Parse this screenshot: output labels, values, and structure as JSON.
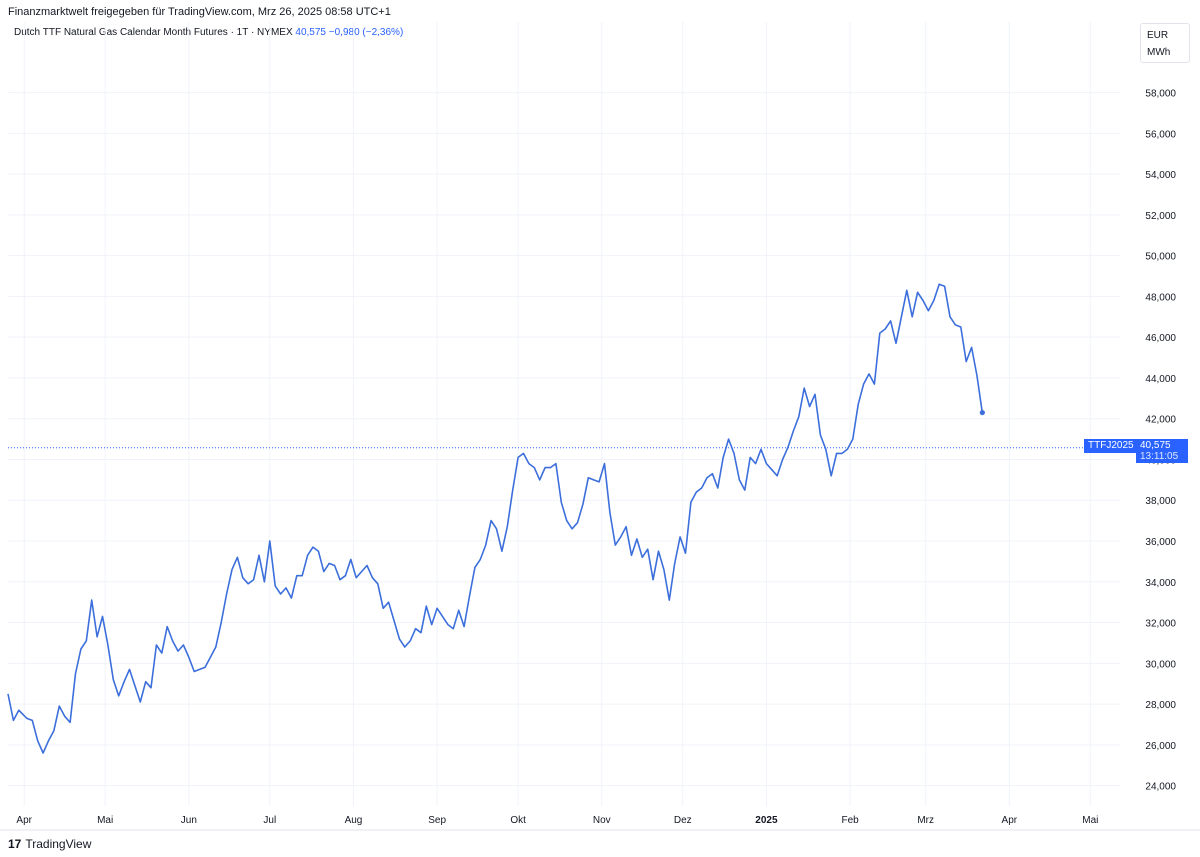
{
  "header": {
    "publisher_line": "Finanzmarktwelt freigegeben für TradingView.com, Mrz 26, 2025 08:58 UTC+1",
    "instrument": "Dutch TTF Natural Gas Calendar Month Futures · 1T · NYMEX",
    "last_price": "40,575",
    "change": "−0,980 (−2,36%)"
  },
  "units": {
    "currency": "EUR",
    "measure": "MWh"
  },
  "price_label": {
    "ticker": "TTFJ2025",
    "price": "40,575",
    "countdown": "13:11:05"
  },
  "footer": {
    "logo_mark": "17",
    "logo_text": "TradingView"
  },
  "colors": {
    "line": "#3c6fdb",
    "accent": "#2962ff",
    "grid": "#f0f3fa"
  },
  "chart_data": {
    "type": "line",
    "title": "Dutch TTF Natural Gas Calendar Month Futures",
    "ylabel": "EUR / MWh",
    "ylim": [
      23000,
      59500
    ],
    "y_ticks": [
      24000,
      26000,
      28000,
      30000,
      32000,
      34000,
      36000,
      38000,
      40000,
      42000,
      44000,
      46000,
      48000,
      50000,
      52000,
      54000,
      56000,
      58000
    ],
    "y_tick_labels": [
      "24,000",
      "26,000",
      "28,000",
      "30,000",
      "32,000",
      "34,000",
      "36,000",
      "38,000",
      "40,000",
      "42,000",
      "44,000",
      "46,000",
      "48,000",
      "50,000",
      "52,000",
      "54,000",
      "56,000",
      "58,000"
    ],
    "xlim": [
      "2024-03-26",
      "2025-05-12"
    ],
    "x_ticks": [
      {
        "label": "Apr",
        "date": "2024-04-01",
        "bold": false
      },
      {
        "label": "Mai",
        "date": "2024-05-01",
        "bold": false
      },
      {
        "label": "Jun",
        "date": "2024-06-01",
        "bold": false
      },
      {
        "label": "Jul",
        "date": "2024-07-01",
        "bold": false
      },
      {
        "label": "Aug",
        "date": "2024-08-01",
        "bold": false
      },
      {
        "label": "Sep",
        "date": "2024-09-01",
        "bold": false
      },
      {
        "label": "Okt",
        "date": "2024-10-01",
        "bold": false
      },
      {
        "label": "Nov",
        "date": "2024-11-01",
        "bold": false
      },
      {
        "label": "Dez",
        "date": "2024-12-01",
        "bold": false
      },
      {
        "label": "2025",
        "date": "2025-01-01",
        "bold": true
      },
      {
        "label": "Feb",
        "date": "2025-02-01",
        "bold": false
      },
      {
        "label": "Mrz",
        "date": "2025-03-01",
        "bold": false
      },
      {
        "label": "Apr",
        "date": "2025-04-01",
        "bold": false
      },
      {
        "label": "Mai",
        "date": "2025-05-01",
        "bold": false
      }
    ],
    "last_value": 40575,
    "series": [
      {
        "points": [
          [
            "2024-03-26",
            28500
          ],
          [
            "2024-03-28",
            27200
          ],
          [
            "2024-03-30",
            27700
          ],
          [
            "2024-04-02",
            27300
          ],
          [
            "2024-04-04",
            27200
          ],
          [
            "2024-04-06",
            26200
          ],
          [
            "2024-04-08",
            25600
          ],
          [
            "2024-04-10",
            26200
          ],
          [
            "2024-04-12",
            26700
          ],
          [
            "2024-04-14",
            27900
          ],
          [
            "2024-04-16",
            27400
          ],
          [
            "2024-04-18",
            27100
          ],
          [
            "2024-04-20",
            29500
          ],
          [
            "2024-04-22",
            30700
          ],
          [
            "2024-04-24",
            31100
          ],
          [
            "2024-04-26",
            33100
          ],
          [
            "2024-04-28",
            31300
          ],
          [
            "2024-04-30",
            32300
          ],
          [
            "2024-05-02",
            30900
          ],
          [
            "2024-05-04",
            29200
          ],
          [
            "2024-05-06",
            28400
          ],
          [
            "2024-05-08",
            29100
          ],
          [
            "2024-05-10",
            29700
          ],
          [
            "2024-05-12",
            28900
          ],
          [
            "2024-05-14",
            28100
          ],
          [
            "2024-05-16",
            29100
          ],
          [
            "2024-05-18",
            28800
          ],
          [
            "2024-05-20",
            30900
          ],
          [
            "2024-05-22",
            30500
          ],
          [
            "2024-05-24",
            31800
          ],
          [
            "2024-05-26",
            31100
          ],
          [
            "2024-05-28",
            30600
          ],
          [
            "2024-05-30",
            30900
          ],
          [
            "2024-06-01",
            30300
          ],
          [
            "2024-06-03",
            29600
          ],
          [
            "2024-06-05",
            29700
          ],
          [
            "2024-06-07",
            29800
          ],
          [
            "2024-06-09",
            30300
          ],
          [
            "2024-06-11",
            30800
          ],
          [
            "2024-06-13",
            32000
          ],
          [
            "2024-06-15",
            33400
          ],
          [
            "2024-06-17",
            34600
          ],
          [
            "2024-06-19",
            35200
          ],
          [
            "2024-06-21",
            34200
          ],
          [
            "2024-06-23",
            33900
          ],
          [
            "2024-06-25",
            34100
          ],
          [
            "2024-06-27",
            35300
          ],
          [
            "2024-06-29",
            34000
          ],
          [
            "2024-07-01",
            36000
          ],
          [
            "2024-07-03",
            33800
          ],
          [
            "2024-07-05",
            33400
          ],
          [
            "2024-07-07",
            33700
          ],
          [
            "2024-07-09",
            33200
          ],
          [
            "2024-07-11",
            34300
          ],
          [
            "2024-07-13",
            34300
          ],
          [
            "2024-07-15",
            35300
          ],
          [
            "2024-07-17",
            35700
          ],
          [
            "2024-07-19",
            35500
          ],
          [
            "2024-07-21",
            34500
          ],
          [
            "2024-07-23",
            34900
          ],
          [
            "2024-07-25",
            34800
          ],
          [
            "2024-07-27",
            34100
          ],
          [
            "2024-07-29",
            34300
          ],
          [
            "2024-07-31",
            35100
          ],
          [
            "2024-08-02",
            34200
          ],
          [
            "2024-08-04",
            34500
          ],
          [
            "2024-08-06",
            34800
          ],
          [
            "2024-08-08",
            34200
          ],
          [
            "2024-08-10",
            33900
          ],
          [
            "2024-08-12",
            32700
          ],
          [
            "2024-08-14",
            33000
          ],
          [
            "2024-08-16",
            32100
          ],
          [
            "2024-08-18",
            31200
          ],
          [
            "2024-08-20",
            30800
          ],
          [
            "2024-08-22",
            31100
          ],
          [
            "2024-08-24",
            31700
          ],
          [
            "2024-08-26",
            31500
          ],
          [
            "2024-08-28",
            32800
          ],
          [
            "2024-08-30",
            31900
          ],
          [
            "2024-09-01",
            32700
          ],
          [
            "2024-09-03",
            32300
          ],
          [
            "2024-09-05",
            31900
          ],
          [
            "2024-09-07",
            31700
          ],
          [
            "2024-09-09",
            32600
          ],
          [
            "2024-09-11",
            31800
          ],
          [
            "2024-09-13",
            33300
          ],
          [
            "2024-09-15",
            34700
          ],
          [
            "2024-09-17",
            35100
          ],
          [
            "2024-09-19",
            35800
          ],
          [
            "2024-09-21",
            37000
          ],
          [
            "2024-09-23",
            36600
          ],
          [
            "2024-09-25",
            35500
          ],
          [
            "2024-09-27",
            36700
          ],
          [
            "2024-09-29",
            38500
          ],
          [
            "2024-10-01",
            40100
          ],
          [
            "2024-10-03",
            40300
          ],
          [
            "2024-10-05",
            39800
          ],
          [
            "2024-10-07",
            39600
          ],
          [
            "2024-10-09",
            39000
          ],
          [
            "2024-10-11",
            39600
          ],
          [
            "2024-10-13",
            39600
          ],
          [
            "2024-10-15",
            39800
          ],
          [
            "2024-10-17",
            37900
          ],
          [
            "2024-10-19",
            37000
          ],
          [
            "2024-10-21",
            36600
          ],
          [
            "2024-10-23",
            36900
          ],
          [
            "2024-10-25",
            37800
          ],
          [
            "2024-10-27",
            39100
          ],
          [
            "2024-10-29",
            39000
          ],
          [
            "2024-10-31",
            38900
          ],
          [
            "2024-11-02",
            39800
          ],
          [
            "2024-11-04",
            37400
          ],
          [
            "2024-11-06",
            35800
          ],
          [
            "2024-11-08",
            36200
          ],
          [
            "2024-11-10",
            36700
          ],
          [
            "2024-11-12",
            35300
          ],
          [
            "2024-11-14",
            36100
          ],
          [
            "2024-11-16",
            35200
          ],
          [
            "2024-11-18",
            35600
          ],
          [
            "2024-11-20",
            34100
          ],
          [
            "2024-11-22",
            35500
          ],
          [
            "2024-11-24",
            34600
          ],
          [
            "2024-11-26",
            33100
          ],
          [
            "2024-11-28",
            34900
          ],
          [
            "2024-11-30",
            36200
          ],
          [
            "2024-12-02",
            35400
          ],
          [
            "2024-12-04",
            37900
          ],
          [
            "2024-12-06",
            38400
          ],
          [
            "2024-12-08",
            38600
          ],
          [
            "2024-12-10",
            39100
          ],
          [
            "2024-12-12",
            39300
          ],
          [
            "2024-12-14",
            38600
          ],
          [
            "2024-12-16",
            40100
          ],
          [
            "2024-12-18",
            41000
          ],
          [
            "2024-12-20",
            40300
          ],
          [
            "2024-12-22",
            39000
          ],
          [
            "2024-12-24",
            38500
          ],
          [
            "2024-12-26",
            40100
          ],
          [
            "2024-12-28",
            39800
          ],
          [
            "2024-12-30",
            40500
          ],
          [
            "2025-01-01",
            39800
          ],
          [
            "2025-01-03",
            39500
          ],
          [
            "2025-01-05",
            39200
          ],
          [
            "2025-01-07",
            40000
          ],
          [
            "2025-01-09",
            40600
          ],
          [
            "2025-01-11",
            41400
          ],
          [
            "2025-01-13",
            42100
          ],
          [
            "2025-01-15",
            43500
          ],
          [
            "2025-01-17",
            42600
          ],
          [
            "2025-01-19",
            43200
          ],
          [
            "2025-01-21",
            41200
          ],
          [
            "2025-01-23",
            40500
          ],
          [
            "2025-01-25",
            39200
          ],
          [
            "2025-01-27",
            40300
          ],
          [
            "2025-01-29",
            40300
          ],
          [
            "2025-01-31",
            40500
          ],
          [
            "2025-02-02",
            41000
          ],
          [
            "2025-02-04",
            42700
          ],
          [
            "2025-02-06",
            43700
          ],
          [
            "2025-02-08",
            44200
          ],
          [
            "2025-02-10",
            43700
          ],
          [
            "2025-02-12",
            46200
          ],
          [
            "2025-02-14",
            46400
          ],
          [
            "2025-02-16",
            46800
          ],
          [
            "2025-02-18",
            45700
          ],
          [
            "2025-02-20",
            47000
          ],
          [
            "2025-02-22",
            48300
          ],
          [
            "2025-02-24",
            47000
          ],
          [
            "2025-02-26",
            48200
          ],
          [
            "2025-02-28",
            47800
          ],
          [
            "2025-03-02",
            47300
          ],
          [
            "2025-03-04",
            47800
          ],
          [
            "2025-03-06",
            48600
          ],
          [
            "2025-03-08",
            48500
          ],
          [
            "2025-03-10",
            47000
          ],
          [
            "2025-03-12",
            46600
          ],
          [
            "2025-03-14",
            46500
          ],
          [
            "2025-03-16",
            44800
          ],
          [
            "2025-03-18",
            45500
          ],
          [
            "2025-03-20",
            44100
          ],
          [
            "2025-03-22",
            42300
          ]
        ]
      }
    ]
  }
}
